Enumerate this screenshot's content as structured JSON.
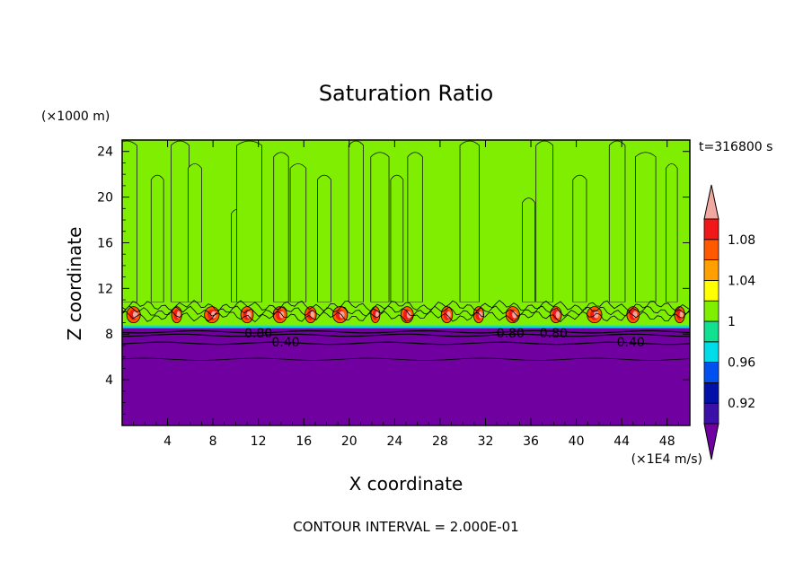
{
  "chart_data": {
    "type": "heatmap",
    "title": "Saturation Ratio",
    "xlabel": "X coordinate",
    "ylabel": "Z coordinate",
    "x_unit": "(×1E4 m/s)",
    "y_unit": "(×1000 m)",
    "time_label": "t=316800 s",
    "footer": "CONTOUR INTERVAL = 2.000E-01",
    "xlim": [
      0,
      50
    ],
    "ylim": [
      0,
      25
    ],
    "x_ticks": [
      4,
      8,
      12,
      16,
      20,
      24,
      28,
      32,
      36,
      40,
      44,
      48
    ],
    "y_ticks": [
      4,
      8,
      12,
      16,
      20,
      24
    ],
    "x_tick_labels": [
      "4",
      "8",
      "12",
      "16",
      "20",
      "24",
      "28",
      "32",
      "36",
      "40",
      "44",
      "48"
    ],
    "y_tick_labels": [
      "4",
      "8",
      "12",
      "16",
      "20",
      "24"
    ],
    "colorbar": {
      "levels": [
        0.9,
        0.92,
        0.94,
        0.96,
        0.98,
        1.0,
        1.02,
        1.04,
        1.06,
        1.08,
        1.1
      ],
      "colors": [
        "#7000a0",
        "#3a10a8",
        "#0010a8",
        "#0050f0",
        "#00dde8",
        "#10e090",
        "#80ee00",
        "#ffff00",
        "#ffa000",
        "#ff5a00",
        "#f01818",
        "#f0a8a0"
      ],
      "tick_labels": [
        "0.92",
        "0.96",
        "1",
        "1.04",
        "1.08"
      ],
      "tick_values": [
        0.92,
        0.96,
        1.0,
        1.04,
        1.08
      ]
    },
    "contour_labels": [
      {
        "text": "0.80",
        "x": 12,
        "z": 8.1
      },
      {
        "text": "0.40",
        "x": 14.4,
        "z": 7.3
      },
      {
        "text": "0.80",
        "x": 34.2,
        "z": 8.1
      },
      {
        "text": "0.80",
        "x": 38,
        "z": 8.1
      },
      {
        "text": "0.40",
        "x": 44.8,
        "z": 7.3
      }
    ],
    "regions": {
      "dry_layer_top_z": 8.6,
      "cloud_layer_z": [
        8.6,
        10.8
      ],
      "upper_field_value": 1.0,
      "plumes_value": 1.01
    },
    "plumes": [
      [
        0.4,
        1.8,
        25
      ],
      [
        3.1,
        1.1,
        22
      ],
      [
        5.1,
        1.6,
        25
      ],
      [
        6.4,
        1.2,
        23
      ],
      [
        10.1,
        1.0,
        19
      ],
      [
        11.2,
        2.2,
        25
      ],
      [
        14.0,
        1.3,
        24
      ],
      [
        15.5,
        1.4,
        23
      ],
      [
        17.8,
        1.2,
        22
      ],
      [
        20.6,
        1.3,
        25
      ],
      [
        22.7,
        1.6,
        24
      ],
      [
        24.2,
        1.1,
        22
      ],
      [
        25.8,
        1.3,
        24
      ],
      [
        30.6,
        1.7,
        25
      ],
      [
        35.8,
        1.1,
        20
      ],
      [
        37.2,
        1.5,
        25
      ],
      [
        40.3,
        1.2,
        22
      ],
      [
        43.6,
        1.4,
        25
      ],
      [
        46.1,
        1.8,
        24
      ],
      [
        48.4,
        1.0,
        23
      ]
    ],
    "wet_pockets": [
      [
        1.0,
        1.2
      ],
      [
        4.8,
        0.9
      ],
      [
        7.9,
        1.3
      ],
      [
        11.0,
        1.1
      ],
      [
        13.9,
        1.2
      ],
      [
        16.6,
        1.0
      ],
      [
        19.2,
        1.3
      ],
      [
        22.3,
        0.8
      ],
      [
        25.1,
        1.1
      ],
      [
        28.6,
        1.0
      ],
      [
        31.4,
        0.9
      ],
      [
        34.4,
        1.2
      ],
      [
        38.2,
        1.0
      ],
      [
        41.6,
        1.3
      ],
      [
        45.0,
        1.1
      ],
      [
        49.1,
        0.9
      ]
    ]
  }
}
